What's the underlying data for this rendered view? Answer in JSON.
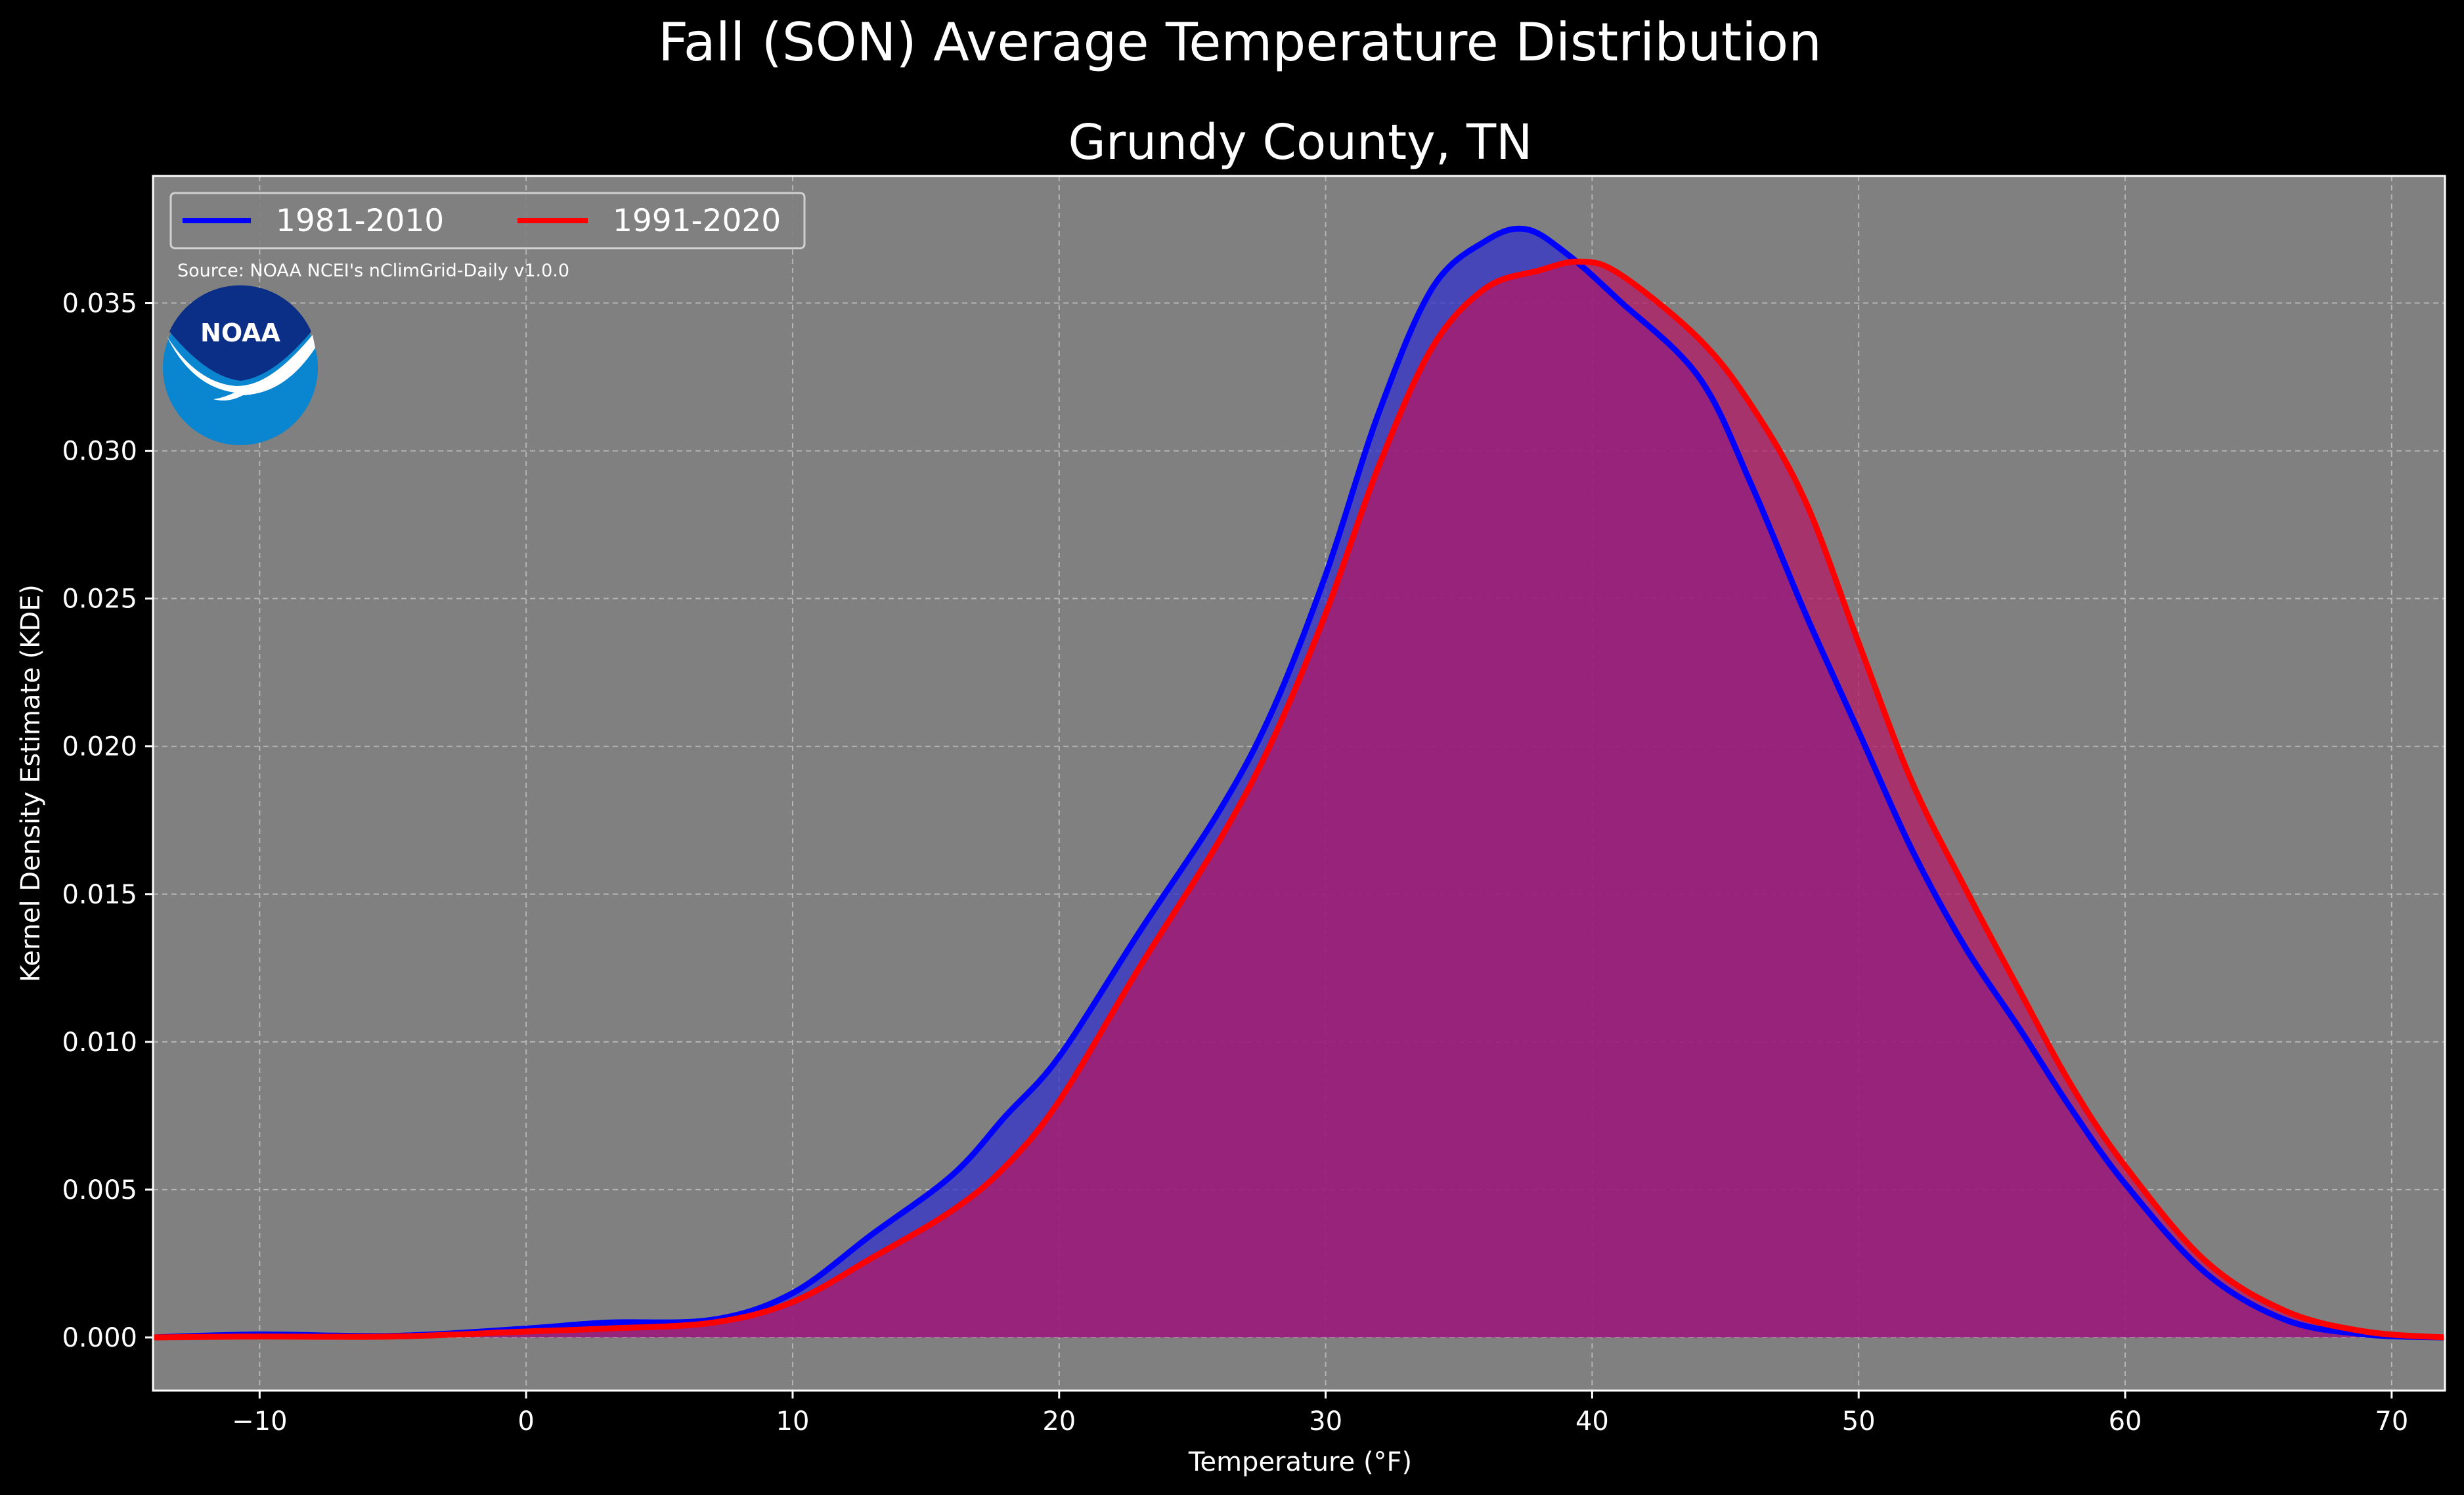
{
  "chart_data": {
    "type": "area",
    "suptitle": "Fall (SON) Average Temperature Distribution",
    "title": "Grundy County, TN",
    "xlabel": "Temperature ($^\\circ$F)",
    "xlabel_display": "Temperature (°F)",
    "ylabel": "Kernel Density Estimate (KDE)",
    "xlim": [
      -14,
      72
    ],
    "ylim": [
      -0.0018,
      0.0393
    ],
    "xticks": [
      -10,
      0,
      10,
      20,
      30,
      40,
      50,
      60,
      70
    ],
    "xtick_labels": [
      "−10",
      "0",
      "10",
      "20",
      "30",
      "40",
      "50",
      "60",
      "70"
    ],
    "yticks": [
      0.0,
      0.005,
      0.01,
      0.015,
      0.02,
      0.025,
      0.03,
      0.035
    ],
    "ytick_labels": [
      "0.000",
      "0.005",
      "0.010",
      "0.015",
      "0.020",
      "0.025",
      "0.030",
      "0.035"
    ],
    "grid": true,
    "legend_position": "top-left",
    "source_note": "Source: NOAA NCEI's nClimGrid-Daily v1.0.0",
    "series": [
      {
        "name": "1981-2010",
        "line_color": "#0000ff",
        "fill_color": "#3333cc",
        "x": [
          -14,
          -10,
          -5,
          0,
          3,
          7,
          10,
          13,
          16,
          18,
          20,
          23,
          26,
          28,
          30,
          32,
          34,
          36,
          37.5,
          39,
          41,
          44,
          46,
          48,
          50,
          52,
          54,
          56,
          58,
          60,
          63,
          66,
          69,
          72
        ],
        "y": [
          0.0,
          0.0001,
          5e-05,
          0.0003,
          0.0005,
          0.0006,
          0.0015,
          0.0035,
          0.0055,
          0.0075,
          0.0095,
          0.0137,
          0.0178,
          0.0212,
          0.0258,
          0.0313,
          0.0355,
          0.0371,
          0.0375,
          0.0367,
          0.0351,
          0.0325,
          0.0288,
          0.0245,
          0.0205,
          0.0165,
          0.0132,
          0.0105,
          0.0077,
          0.0052,
          0.0022,
          0.0006,
          0.0001,
          0.0
        ]
      },
      {
        "name": "1991-2020",
        "line_color": "#ff0000",
        "fill_color": "#b31a66",
        "x": [
          -14,
          -10,
          -5,
          0,
          3,
          7,
          10,
          13,
          16,
          18,
          20,
          23,
          26,
          28,
          30,
          32,
          34,
          36,
          38,
          39.5,
          41,
          44,
          46,
          48,
          50,
          52,
          54,
          56,
          58,
          60,
          63,
          66,
          69,
          72
        ],
        "y": [
          0.0,
          3e-05,
          3e-05,
          0.0002,
          0.0003,
          0.0005,
          0.0012,
          0.0027,
          0.0043,
          0.0058,
          0.008,
          0.0125,
          0.0168,
          0.0202,
          0.0245,
          0.0295,
          0.0335,
          0.0355,
          0.0361,
          0.0364,
          0.036,
          0.0338,
          0.0315,
          0.0283,
          0.0235,
          0.0188,
          0.0152,
          0.0118,
          0.0085,
          0.0058,
          0.0026,
          0.0009,
          0.0002,
          0.0
        ]
      }
    ]
  },
  "logo": {
    "name": "NOAA",
    "text": "NOAA",
    "outer_color": "#0a85d0",
    "inner_color": "#0b2f87",
    "bird_color": "#ffffff"
  },
  "colors": {
    "background": "#000000",
    "plot_background": "#808080",
    "grid": "#b4b4b4",
    "text": "#ffffff"
  }
}
